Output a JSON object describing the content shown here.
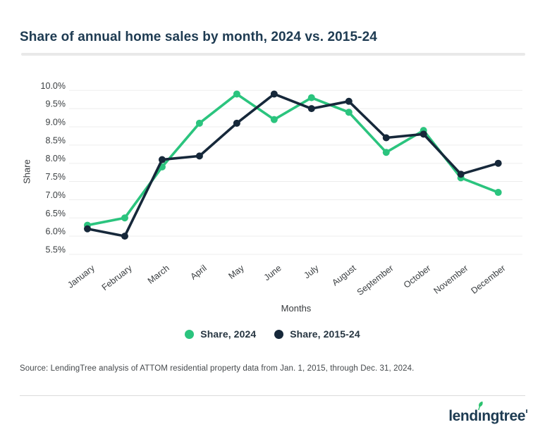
{
  "header": {
    "title": "Share of annual home sales by month, 2024 vs. 2015-24"
  },
  "chart_data": {
    "type": "line",
    "categories": [
      "January",
      "February",
      "March",
      "April",
      "May",
      "June",
      "July",
      "August",
      "September",
      "October",
      "November",
      "December"
    ],
    "series": [
      {
        "name": "Share, 2024",
        "color": "#2bc47e",
        "values": [
          6.3,
          6.5,
          7.9,
          9.1,
          9.9,
          9.2,
          9.8,
          9.4,
          8.3,
          8.9,
          7.6,
          7.2
        ]
      },
      {
        "name": "Share, 2015-24",
        "color": "#16283a",
        "values": [
          6.2,
          6.0,
          8.1,
          8.2,
          9.1,
          9.9,
          9.5,
          9.7,
          8.7,
          8.8,
          7.7,
          8.0
        ]
      }
    ],
    "title": "Share of annual home sales by month, 2024 vs. 2015-24",
    "xlabel": "Months",
    "ylabel": "Share",
    "ylim": [
      5.5,
      10.0
    ],
    "ytick_step": 0.5,
    "ytick_suffix": "%",
    "grid": true,
    "legend_position": "bottom"
  },
  "source_note": "Source: LendingTree analysis of ATTOM residential property data from Jan. 1, 2015, through Dec. 31, 2024.",
  "footer": {
    "logo_text_pre": "lend",
    "logo_text_i": "ı",
    "logo_text_post": "ngtree"
  },
  "colors": {
    "title": "#1e3b52",
    "axis_text": "#3a3e41",
    "gridline": "#ededed",
    "green": "#2bc47e",
    "navy": "#16283a",
    "leaf": "#2cc26f"
  }
}
